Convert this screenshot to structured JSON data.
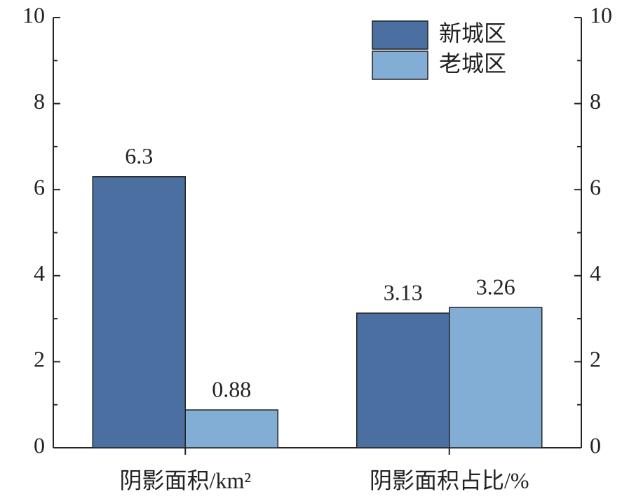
{
  "chart_data": {
    "type": "bar",
    "categories": [
      "阴影面积/km²",
      "阴影面积占比/%"
    ],
    "series": [
      {
        "name": "新城区",
        "color": "#4a6fa0",
        "values": [
          6.3,
          3.13
        ]
      },
      {
        "name": "老城区",
        "color": "#82aed6",
        "values": [
          0.88,
          3.26
        ]
      }
    ],
    "ylim": [
      0,
      10
    ],
    "yticks": [
      0,
      2,
      4,
      6,
      8,
      10
    ],
    "y2lim": [
      0,
      10
    ],
    "y2ticks": [
      0,
      2,
      4,
      6,
      8,
      10
    ],
    "grid": false,
    "legend": "upper right"
  }
}
